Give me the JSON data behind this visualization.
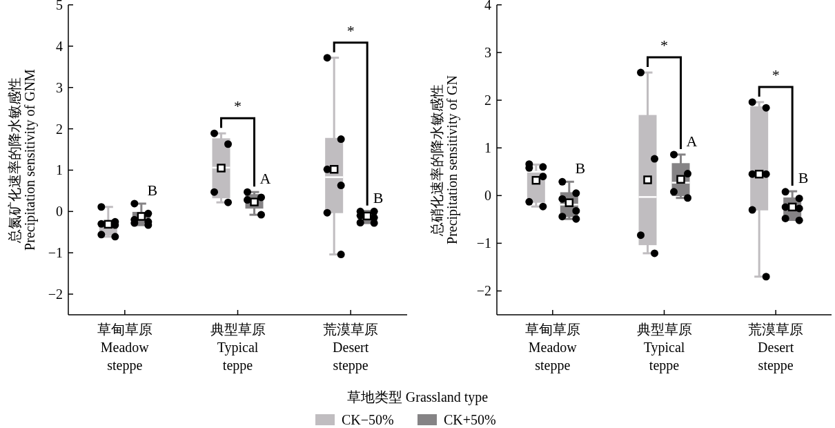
{
  "chart_data": [
    {
      "type": "box",
      "ylabel": "总氮矿化速率的降水敏感性\nPrecipitation sensitivity of GNM",
      "xlabel": "草地类型 Grassland type",
      "legend": "bottom",
      "grid": false,
      "marker": "circle",
      "categories": [
        "草甸草原\nMeadow\nsteppe",
        "典型草原\nTypical\nteppe",
        "荒漠草原\nDesert\nsteppe"
      ],
      "ylim": [
        -2.5,
        5
      ],
      "yticks": [
        -2,
        -1,
        0,
        1,
        2,
        3,
        4,
        5
      ],
      "series": [
        {
          "name": "CK−50%",
          "color": "#c0bdc0",
          "boxes": [
            {
              "low": -0.61,
              "q1": -0.58,
              "median": -0.36,
              "q3": -0.23,
              "high": 0.11,
              "mean": -0.31
            },
            {
              "low": 0.22,
              "q1": 0.32,
              "median": 1.06,
              "q3": 1.77,
              "high": 1.89,
              "mean": 1.05
            },
            {
              "low": -1.04,
              "q1": -0.04,
              "median": 0.83,
              "q3": 1.78,
              "high": 3.72,
              "mean": 1.02
            }
          ]
        },
        {
          "name": "CK+50%",
          "color": "#858385",
          "boxes": [
            {
              "low": -0.33,
              "q1": -0.33,
              "median": -0.19,
              "q3": -0.01,
              "high": 0.19,
              "mean": -0.12
            },
            {
              "low": -0.08,
              "q1": 0.07,
              "median": 0.31,
              "q3": 0.42,
              "high": 0.47,
              "mean": 0.23
            },
            {
              "low": -0.28,
              "q1": -0.28,
              "median": -0.14,
              "q3": 0.01,
              "high": 0.01,
              "mean": -0.11
            }
          ],
          "value_labels": [
            "B",
            "A",
            "B"
          ]
        },
        {
          "type": "scatter",
          "color": "#000000",
          "x": [
            "草甸草原\nMeadow\nsteppe",
            "草甸草原\nMeadow\nsteppe",
            "草甸草原\nMeadow\nsteppe",
            "草甸草原\nMeadow\nsteppe",
            "草甸草原\nMeadow\nsteppe",
            "草甸草原\nMeadow\nsteppe",
            "典型草原\nTypical\nteppe",
            "典型草原\nTypical\nteppe",
            "典型草原\nTypical\nteppe",
            "典型草原\nTypical\nteppe",
            "荒漠草原\nDesert\nsteppe",
            "荒漠草原\nDesert\nsteppe",
            "荒漠草原\nDesert\nsteppe",
            "荒漠草原\nDesert\nsteppe",
            "荒漠草原\nDesert\nsteppe",
            "荒漠草原\nDesert\nsteppe"
          ],
          "values": [
            0.11,
            -0.25,
            -0.3,
            -0.33,
            -0.56,
            -0.61,
            1.89,
            1.63,
            0.47,
            0.22,
            3.72,
            1.75,
            1.02,
            0.63,
            -0.03,
            -1.04
          ]
        },
        {
          "type": "scatter",
          "color": "#000000",
          "x": [
            "草甸草原\nMeadow\nsteppe",
            "草甸草原\nMeadow\nsteppe",
            "草甸草原\nMeadow\nsteppe",
            "草甸草原\nMeadow\nsteppe",
            "草甸草原\nMeadow\nsteppe",
            "草甸草原\nMeadow\nsteppe",
            "典型草原\nTypical\nteppe",
            "典型草原\nTypical\nteppe",
            "典型草原\nTypical\nteppe",
            "典型草原\nTypical\nteppe",
            "荒漠草原\nDesert\nsteppe",
            "荒漠草原\nDesert\nsteppe",
            "荒漠草原\nDesert\nsteppe",
            "荒漠草原\nDesert\nsteppe",
            "荒漠草原\nDesert\nsteppe",
            "荒漠草原\nDesert\nsteppe"
          ],
          "values": [
            0.19,
            -0.05,
            -0.2,
            -0.25,
            -0.28,
            -0.33,
            0.47,
            0.34,
            0.28,
            -0.08,
            0.0,
            0.0,
            -0.1,
            -0.15,
            -0.27,
            -0.28
          ]
        }
      ],
      "annotations": [
        "*",
        "*"
      ]
    },
    {
      "type": "box",
      "ylabel": "总硝化速率的降水敏感性\nPrecipitation sensitivity of GN",
      "grid": false,
      "marker": "circle",
      "categories": [
        "草甸草原\nMeadow\nsteppe",
        "典型草原\nTypical\nteppe",
        "荒漠草原\nDesert\nsteppe"
      ],
      "ylim": [
        -2.5,
        4
      ],
      "yticks": [
        -2,
        -1,
        0,
        1,
        2,
        3,
        4
      ],
      "series": [
        {
          "color": "#c0bdc0",
          "boxes": [
            {
              "low": -0.23,
              "q1": -0.15,
              "median": 0.5,
              "q3": 0.52,
              "high": 0.65,
              "mean": 0.32
            },
            {
              "low": -1.21,
              "q1": -1.04,
              "median": -0.03,
              "q3": 1.69,
              "high": 2.58,
              "mean": 0.33
            },
            {
              "low": -1.7,
              "q1": -0.31,
              "median": 0.45,
              "q3": 1.87,
              "high": 1.96,
              "mean": 0.45
            }
          ]
        },
        {
          "color": "#858385",
          "boxes": [
            {
              "low": -0.49,
              "q1": -0.45,
              "median": -0.19,
              "q3": 0.07,
              "high": 0.29,
              "mean": -0.15
            },
            {
              "low": -0.05,
              "q1": -0.01,
              "median": 0.27,
              "q3": 0.68,
              "high": 0.86,
              "mean": 0.34
            },
            {
              "low": -0.51,
              "q1": -0.49,
              "median": -0.24,
              "q3": -0.04,
              "high": 0.09,
              "mean": -0.24
            }
          ],
          "value_labels": [
            "B",
            "A",
            "B"
          ]
        },
        {
          "type": "scatter",
          "color": "#000000",
          "x": [
            "草甸草原\nMeadow\nsteppe",
            "草甸草原\nMeadow\nsteppe",
            "草甸草原\nMeadow\nsteppe",
            "草甸草原\nMeadow\nsteppe",
            "草甸草原\nMeadow\nsteppe",
            "草甸草原\nMeadow\nsteppe",
            "典型草原\nTypical\nteppe",
            "典型草原\nTypical\nteppe",
            "典型草原\nTypical\nteppe",
            "典型草原\nTypical\nteppe",
            "荒漠草原\nDesert\nsteppe",
            "荒漠草原\nDesert\nsteppe",
            "荒漠草原\nDesert\nsteppe",
            "荒漠草原\nDesert\nsteppe",
            "荒漠草原\nDesert\nsteppe",
            "荒漠草原\nDesert\nsteppe"
          ],
          "values": [
            0.66,
            0.6,
            0.58,
            0.4,
            -0.13,
            -0.23,
            2.58,
            0.77,
            -0.83,
            -1.21,
            1.96,
            1.84,
            0.45,
            0.45,
            -0.3,
            -1.7
          ]
        },
        {
          "type": "scatter",
          "color": "#000000",
          "x": [
            "草甸草原\nMeadow\nsteppe",
            "草甸草原\nMeadow\nsteppe",
            "草甸草原\nMeadow\nsteppe",
            "草甸草原\nMeadow\nsteppe",
            "草甸草原\nMeadow\nsteppe",
            "草甸草原\nMeadow\nsteppe",
            "典型草原\nTypical\nteppe",
            "典型草原\nTypical\nteppe",
            "典型草原\nTypical\nteppe",
            "典型草原\nTypical\nteppe",
            "荒漠草原\nDesert\nsteppe",
            "荒漠草原\nDesert\nsteppe",
            "荒漠草原\nDesert\nsteppe",
            "荒漠草原\nDesert\nsteppe",
            "荒漠草原\nDesert\nsteppe",
            "荒漠草原\nDesert\nsteppe"
          ],
          "values": [
            0.29,
            0.05,
            -0.07,
            -0.32,
            -0.44,
            -0.49,
            0.86,
            0.46,
            0.08,
            -0.05,
            0.08,
            -0.06,
            -0.24,
            -0.27,
            -0.48,
            -0.52
          ]
        }
      ],
      "annotations": [
        "*",
        "*"
      ]
    }
  ]
}
